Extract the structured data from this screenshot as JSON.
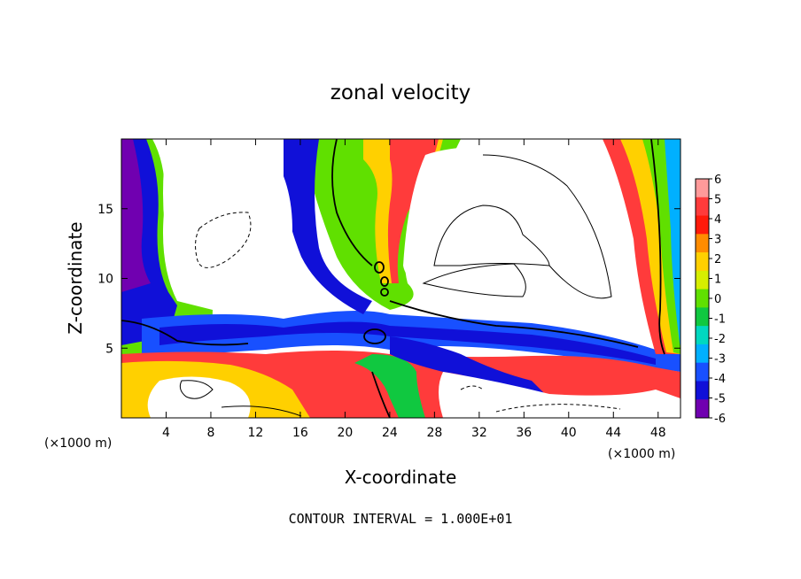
{
  "chart_data": {
    "type": "heatmap",
    "title": "zonal velocity",
    "xlabel": "X-coordinate",
    "ylabel": "Z-coordinate",
    "x_unit": "(×1000 m)",
    "y_unit": "(×1000 m)",
    "xlim": [
      0,
      50
    ],
    "ylim": [
      0,
      20
    ],
    "x_ticks": [
      4,
      8,
      12,
      16,
      20,
      24,
      28,
      32,
      36,
      40,
      44,
      48
    ],
    "y_ticks": [
      5,
      10,
      15
    ],
    "footer": "CONTOUR INTERVAL = 1.000E+01",
    "colorbar": {
      "labels": [
        "6",
        "5",
        "4",
        "3",
        "2",
        "1",
        "0",
        "-1",
        "-2",
        "-3",
        "-4",
        "-5",
        "-6"
      ],
      "values": [
        6,
        5,
        4,
        3,
        2,
        1,
        0,
        -1,
        -2,
        -3,
        -4,
        -5,
        -6
      ],
      "colors": [
        "#ff9a9a",
        "#ff3b3b",
        "#ff1a0a",
        "#ff8c00",
        "#ffd000",
        "#d7ee00",
        "#60e000",
        "#10c840",
        "#00d8c0",
        "#00b0ff",
        "#1850ff",
        "#1010d8",
        "#7000b0"
      ]
    },
    "grid": false
  }
}
